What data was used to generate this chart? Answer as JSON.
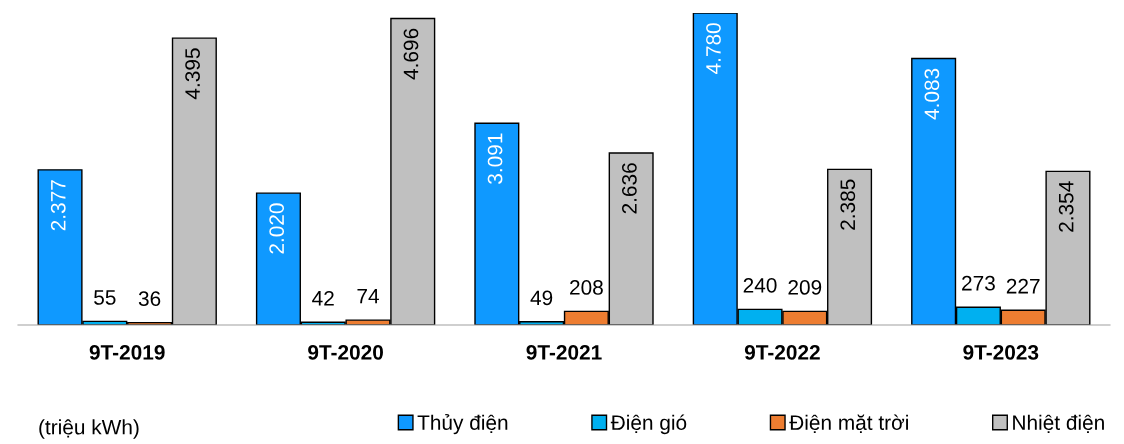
{
  "chart_data": {
    "type": "bar",
    "categories": [
      "9T-2019",
      "9T-2020",
      "9T-2021",
      "9T-2022",
      "9T-2023"
    ],
    "series": [
      {
        "name": "Thủy điện",
        "color": "#0f99ff",
        "values": [
          2377,
          2020,
          3091,
          4780,
          4083
        ],
        "value_labels": [
          "2.377",
          "2.020",
          "3.091",
          "4.780",
          "4.083"
        ]
      },
      {
        "name": "Điện gió",
        "color": "#00b0f0",
        "values": [
          55,
          42,
          49,
          240,
          273
        ],
        "value_labels": [
          "55",
          "42",
          "49",
          "240",
          "273"
        ]
      },
      {
        "name": "Điện mặt trời",
        "color": "#ed7d31",
        "values": [
          36,
          74,
          208,
          209,
          227
        ],
        "value_labels": [
          "36",
          "74",
          "208",
          "209",
          "227"
        ]
      },
      {
        "name": "Nhiệt điện",
        "color": "#c0c0c0",
        "values": [
          4395,
          4696,
          2636,
          2385,
          2354
        ],
        "value_labels": [
          "4.395",
          "4.696",
          "2.636",
          "2.385",
          "2.354"
        ]
      }
    ],
    "annotations": [
      "(triệu kWh)"
    ],
    "legend": "bottom right",
    "grid": false
  }
}
